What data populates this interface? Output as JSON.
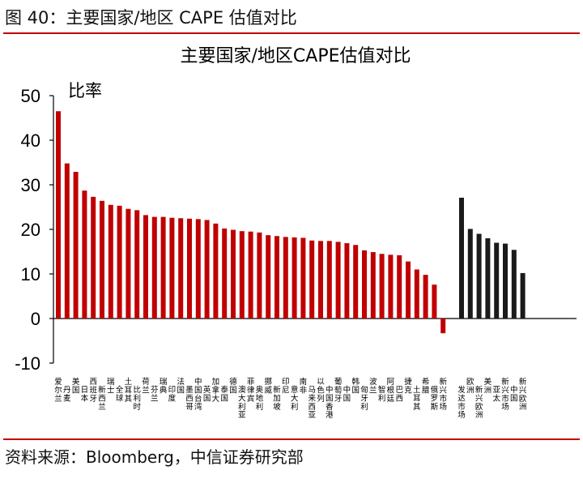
{
  "figure_caption": "图 40：主要国家/地区 CAPE 估值对比",
  "source_note": "资料来源：Bloomberg，中信证券研究部",
  "colors": {
    "accent_rule": "#c00000",
    "country_bar": "#c00000",
    "region_bar": "#1a1a1a",
    "axis": "#000000"
  },
  "chart_data": {
    "type": "bar",
    "title": "主要国家/地区CAPE估值对比",
    "ylabel": "比率",
    "xlabel": "",
    "ylim": [
      -10,
      50
    ],
    "yticks": [
      -10,
      0,
      10,
      20,
      30,
      40,
      50
    ],
    "grid": false,
    "legend": "none",
    "categories": [
      "爱尔兰",
      "丹麦",
      "美国",
      "日本",
      "西班牙",
      "新西兰",
      "瑞士",
      "全球",
      "土耳其",
      "比利时",
      "荷兰",
      "芬兰",
      "瑞典",
      "印度",
      "法国",
      "墨西哥",
      "中国台湾",
      "英国",
      "加拿大",
      "泰国",
      "德国",
      "澳大利亚",
      "菲律宾",
      "奥地利",
      "挪威",
      "新加坡",
      "印尼",
      "意大利",
      "南非",
      "马来西亚",
      "以色列",
      "中国香港",
      "葡萄牙",
      "中国",
      "韩国",
      "匈牙利",
      "波兰",
      "智利",
      "阿根廷",
      "巴西",
      "捷克",
      "土耳其",
      "希腊",
      "俄罗斯",
      "新兴市场",
      "发达市场",
      "欧洲",
      "新兴欧洲",
      "美洲",
      "亚太",
      "新兴市场",
      "中国",
      "新兴欧洲"
    ],
    "values": [
      46.5,
      34.8,
      32.9,
      28.7,
      27.3,
      26.4,
      25.5,
      25.3,
      24.6,
      24.3,
      23.2,
      22.8,
      22.8,
      22.6,
      22.5,
      22.4,
      22.3,
      22.1,
      21.3,
      20.2,
      19.9,
      19.6,
      19.5,
      19.3,
      18.7,
      18.5,
      18.3,
      18.2,
      18.1,
      17.5,
      17.4,
      17.4,
      17.2,
      16.9,
      16.5,
      15.3,
      14.9,
      14.5,
      14.3,
      14.2,
      12.8,
      11.0,
      9.8,
      7.6,
      -3.3,
      27.1,
      20.1,
      19.0,
      18.0,
      17.0,
      16.8,
      15.4,
      10.2
    ],
    "labels_vertical": [
      "爱尔兰",
      "丹麦",
      "美国",
      "日本",
      "西班牙",
      "新西兰",
      "瑞士",
      "全球",
      "土耳其",
      "比利时",
      "荷兰",
      "芬兰",
      "瑞典",
      "印度",
      "法国",
      "墨西哥",
      "中国台湾",
      "英国",
      "加拿大",
      "泰国",
      "德国",
      "澳大利亚",
      "菲律宾",
      "奥地利",
      "挪威",
      "新加坡",
      "印尼",
      "意大利",
      "南非",
      "马来西亚",
      "以色列",
      "中国香港",
      "葡萄牙",
      "中国",
      "韩国",
      "匈牙利",
      "波兰",
      "智利",
      "阿根廷",
      "巴西",
      "捷克",
      "土耳其",
      "希腊",
      "俄罗斯",
      "新兴市场",
      "发达市场",
      "欧洲",
      "新兴欧洲",
      "美洲",
      "亚太",
      "新兴市场",
      "中国",
      "新兴欧洲"
    ],
    "series_split_index": 45
  }
}
